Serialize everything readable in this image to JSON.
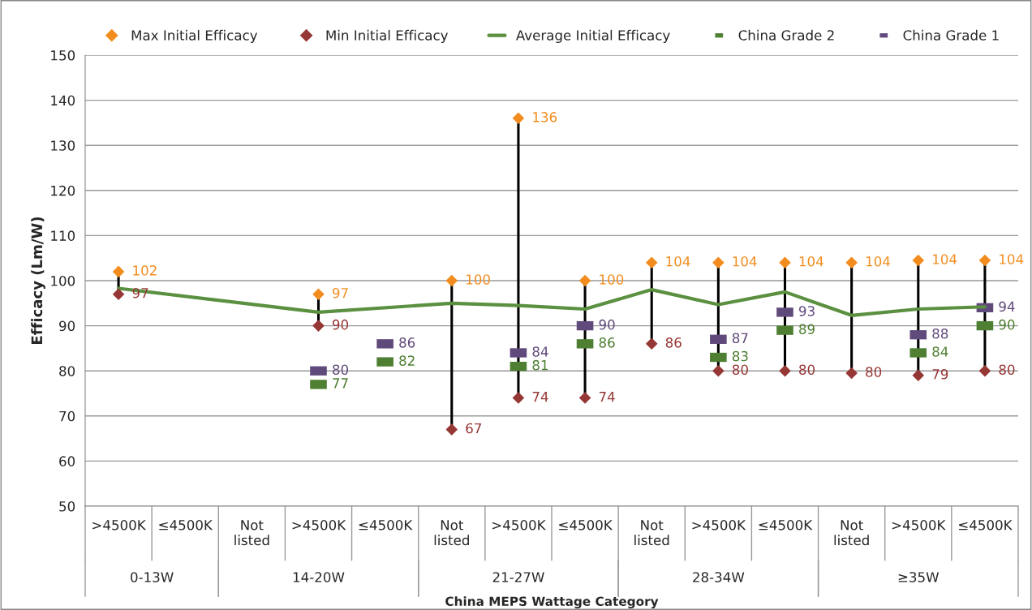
{
  "chart_data": {
    "type": "scatter",
    "xlabel": "China MEPS Wattage Category",
    "ylabel": "Efficacy (Lm/W)",
    "categories": [
      ">4500K",
      "≤4500K",
      "Not listed",
      ">4500K",
      "≤4500K",
      "Not listed",
      ">4500K",
      "≤4500K",
      "Not listed",
      ">4500K",
      "≤4500K",
      "Not listed",
      ">4500K",
      "≤4500K"
    ],
    "annotations": [
      "0-13W",
      "14-20W",
      "21-27W",
      "28-34W",
      "≥35W"
    ],
    "ylim": [
      50,
      150
    ],
    "yticks": [
      50,
      60,
      70,
      80,
      90,
      100,
      110,
      120,
      130,
      140,
      150
    ],
    "grid": "y",
    "legend": "top",
    "series": [
      {
        "name": "Max Initial Efficacy",
        "marker": "diamond",
        "color": "#f28c1e",
        "values": [
          102,
          null,
          null,
          97,
          null,
          100,
          136,
          100,
          104,
          104,
          104,
          104,
          104.5,
          104.5
        ],
        "value_labels": [
          "102",
          null,
          null,
          "97",
          null,
          "100",
          "136",
          "100",
          "104",
          "104",
          "104",
          "104",
          "104",
          "104"
        ]
      },
      {
        "name": "Min Initial Efficacy",
        "marker": "diamond",
        "color": "#953735",
        "values": [
          97,
          null,
          null,
          90,
          null,
          67,
          74,
          74,
          86,
          80,
          80,
          79.5,
          79,
          80
        ],
        "value_labels": [
          "97",
          null,
          null,
          "90",
          null,
          "67",
          "74",
          "74",
          "86",
          "80",
          "80",
          "80",
          "79",
          "80"
        ]
      },
      {
        "name": "Average Initial Efficacy",
        "type": "line",
        "marker": "none",
        "color": "#5a9040",
        "values": [
          98.3,
          null,
          null,
          93,
          null,
          95,
          94.5,
          93.7,
          98,
          94.7,
          97.5,
          92.3,
          93.7,
          94.2
        ]
      },
      {
        "name": "China Grade 2",
        "marker": "square",
        "color": "#4e7f32",
        "values": [
          null,
          null,
          null,
          77,
          82,
          null,
          81,
          86,
          null,
          83,
          89,
          null,
          84,
          90
        ],
        "value_labels": [
          null,
          null,
          null,
          "77",
          "82",
          null,
          "81",
          "86",
          null,
          "83",
          "89",
          null,
          "84",
          "90"
        ]
      },
      {
        "name": "China Grade 1",
        "marker": "square",
        "color": "#604a7b",
        "values": [
          null,
          null,
          null,
          80,
          86,
          null,
          84,
          90,
          null,
          87,
          93,
          null,
          88,
          94
        ],
        "value_labels": [
          null,
          null,
          null,
          "80",
          "86",
          null,
          "84",
          "90",
          null,
          "87",
          "93",
          null,
          "88",
          "94"
        ]
      }
    ]
  }
}
